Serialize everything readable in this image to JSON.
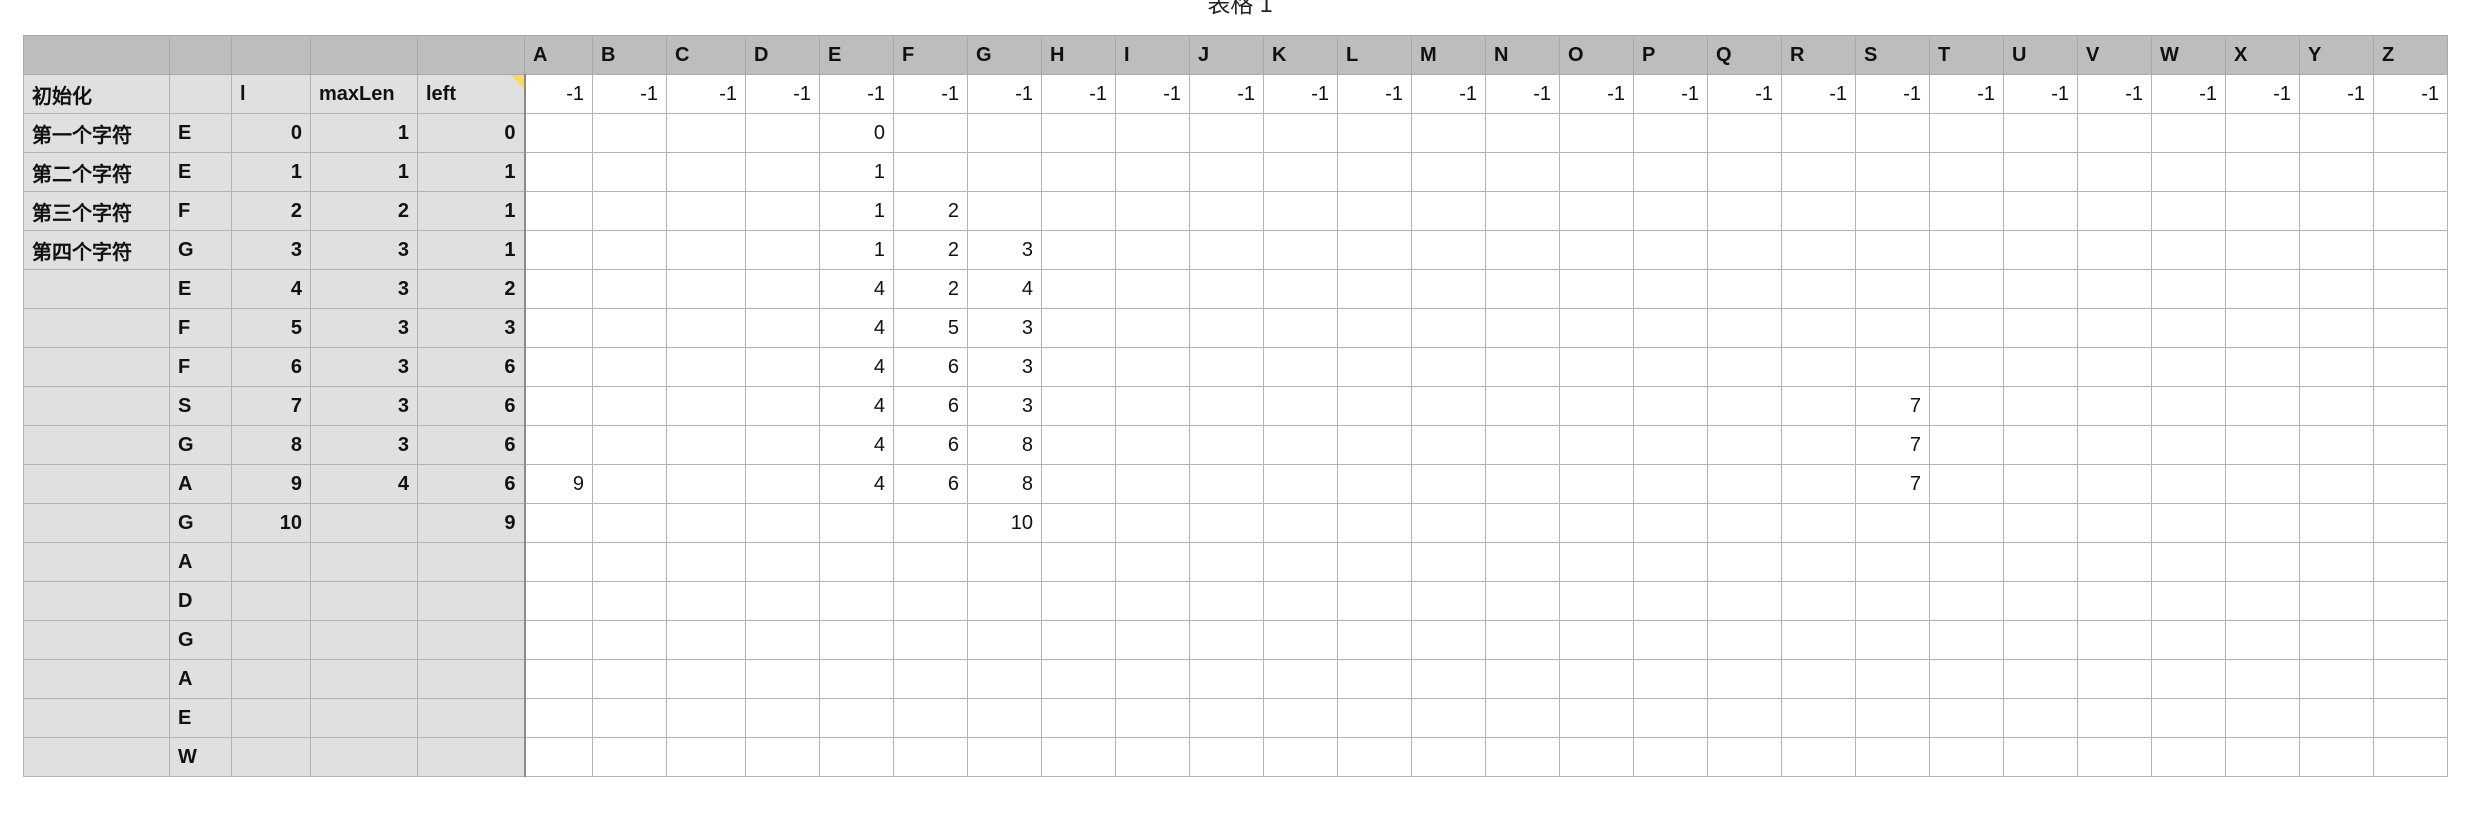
{
  "sheet_title": "表格 1",
  "col_headers": [
    "A",
    "B",
    "C",
    "D",
    "E",
    "F",
    "G",
    "H",
    "I",
    "J",
    "K",
    "L",
    "M",
    "N",
    "O",
    "P",
    "Q",
    "R",
    "S",
    "T",
    "U",
    "V",
    "W",
    "X",
    "Y",
    "Z"
  ],
  "header_row": {
    "label": "初始化",
    "char": "",
    "i": "l",
    "max_len": "maxLen",
    "left": "left"
  },
  "rows": [
    {
      "label": "初始化",
      "char": "",
      "i": "l",
      "max_len": "maxLen",
      "left": "left",
      "is_header": true,
      "values": [
        "-1",
        "-1",
        "-1",
        "-1",
        "-1",
        "-1",
        "-1",
        "-1",
        "-1",
        "-1",
        "-1",
        "-1",
        "-1",
        "-1",
        "-1",
        "-1",
        "-1",
        "-1",
        "-1",
        "-1",
        "-1",
        "-1",
        "-1",
        "-1",
        "-1",
        "-1"
      ]
    },
    {
      "label": "第一个字符",
      "char": "E",
      "i": "0",
      "max_len": "1",
      "left": "0",
      "values": [
        "",
        "",
        "",
        "",
        "0",
        "",
        "",
        "",
        "",
        "",
        "",
        "",
        "",
        "",
        "",
        "",
        "",
        "",
        "",
        "",
        "",
        "",
        "",
        "",
        "",
        ""
      ]
    },
    {
      "label": "第二个字符",
      "char": "E",
      "i": "1",
      "max_len": "1",
      "left": "1",
      "values": [
        "",
        "",
        "",
        "",
        "1",
        "",
        "",
        "",
        "",
        "",
        "",
        "",
        "",
        "",
        "",
        "",
        "",
        "",
        "",
        "",
        "",
        "",
        "",
        "",
        "",
        ""
      ]
    },
    {
      "label": "第三个字符",
      "char": "F",
      "i": "2",
      "max_len": "2",
      "left": "1",
      "values": [
        "",
        "",
        "",
        "",
        "1",
        "2",
        "",
        "",
        "",
        "",
        "",
        "",
        "",
        "",
        "",
        "",
        "",
        "",
        "",
        "",
        "",
        "",
        "",
        "",
        "",
        ""
      ]
    },
    {
      "label": "第四个字符",
      "char": "G",
      "i": "3",
      "max_len": "3",
      "left": "1",
      "values": [
        "",
        "",
        "",
        "",
        "1",
        "2",
        "3",
        "",
        "",
        "",
        "",
        "",
        "",
        "",
        "",
        "",
        "",
        "",
        "",
        "",
        "",
        "",
        "",
        "",
        "",
        ""
      ]
    },
    {
      "label": "",
      "char": "E",
      "i": "4",
      "max_len": "3",
      "left": "2",
      "values": [
        "",
        "",
        "",
        "",
        "4",
        "2",
        "4",
        "",
        "",
        "",
        "",
        "",
        "",
        "",
        "",
        "",
        "",
        "",
        "",
        "",
        "",
        "",
        "",
        "",
        "",
        ""
      ]
    },
    {
      "label": "",
      "char": "F",
      "i": "5",
      "max_len": "3",
      "left": "3",
      "values": [
        "",
        "",
        "",
        "",
        "4",
        "5",
        "3",
        "",
        "",
        "",
        "",
        "",
        "",
        "",
        "",
        "",
        "",
        "",
        "",
        "",
        "",
        "",
        "",
        "",
        "",
        ""
      ]
    },
    {
      "label": "",
      "char": "F",
      "i": "6",
      "max_len": "3",
      "left": "6",
      "values": [
        "",
        "",
        "",
        "",
        "4",
        "6",
        "3",
        "",
        "",
        "",
        "",
        "",
        "",
        "",
        "",
        "",
        "",
        "",
        "",
        "",
        "",
        "",
        "",
        "",
        "",
        ""
      ]
    },
    {
      "label": "",
      "char": "S",
      "i": "7",
      "max_len": "3",
      "left": "6",
      "values": [
        "",
        "",
        "",
        "",
        "4",
        "6",
        "3",
        "",
        "",
        "",
        "",
        "",
        "",
        "",
        "",
        "",
        "",
        "",
        "7",
        "",
        "",
        "",
        "",
        "",
        "",
        ""
      ]
    },
    {
      "label": "",
      "char": "G",
      "i": "8",
      "max_len": "3",
      "left": "6",
      "values": [
        "",
        "",
        "",
        "",
        "4",
        "6",
        "8",
        "",
        "",
        "",
        "",
        "",
        "",
        "",
        "",
        "",
        "",
        "",
        "7",
        "",
        "",
        "",
        "",
        "",
        "",
        ""
      ]
    },
    {
      "label": "",
      "char": "A",
      "i": "9",
      "max_len": "4",
      "left": "6",
      "values": [
        "9",
        "",
        "",
        "",
        "4",
        "6",
        "8",
        "",
        "",
        "",
        "",
        "",
        "",
        "",
        "",
        "",
        "",
        "",
        "7",
        "",
        "",
        "",
        "",
        "",
        "",
        ""
      ]
    },
    {
      "label": "",
      "char": "G",
      "i": "10",
      "max_len": "",
      "left": "9",
      "values": [
        "",
        "",
        "",
        "",
        "",
        "",
        "10",
        "",
        "",
        "",
        "",
        "",
        "",
        "",
        "",
        "",
        "",
        "",
        "",
        "",
        "",
        "",
        "",
        "",
        "",
        ""
      ]
    },
    {
      "label": "",
      "char": "A",
      "i": "",
      "max_len": "",
      "left": "",
      "values": [
        "",
        "",
        "",
        "",
        "",
        "",
        "",
        "",
        "",
        "",
        "",
        "",
        "",
        "",
        "",
        "",
        "",
        "",
        "",
        "",
        "",
        "",
        "",
        "",
        "",
        ""
      ]
    },
    {
      "label": "",
      "char": "D",
      "i": "",
      "max_len": "",
      "left": "",
      "values": [
        "",
        "",
        "",
        "",
        "",
        "",
        "",
        "",
        "",
        "",
        "",
        "",
        "",
        "",
        "",
        "",
        "",
        "",
        "",
        "",
        "",
        "",
        "",
        "",
        "",
        ""
      ]
    },
    {
      "label": "",
      "char": "G",
      "i": "",
      "max_len": "",
      "left": "",
      "values": [
        "",
        "",
        "",
        "",
        "",
        "",
        "",
        "",
        "",
        "",
        "",
        "",
        "",
        "",
        "",
        "",
        "",
        "",
        "",
        "",
        "",
        "",
        "",
        "",
        "",
        ""
      ]
    },
    {
      "label": "",
      "char": "A",
      "i": "",
      "max_len": "",
      "left": "",
      "values": [
        "",
        "",
        "",
        "",
        "",
        "",
        "",
        "",
        "",
        "",
        "",
        "",
        "",
        "",
        "",
        "",
        "",
        "",
        "",
        "",
        "",
        "",
        "",
        "",
        "",
        ""
      ]
    },
    {
      "label": "",
      "char": "E",
      "i": "",
      "max_len": "",
      "left": "",
      "values": [
        "",
        "",
        "",
        "",
        "",
        "",
        "",
        "",
        "",
        "",
        "",
        "",
        "",
        "",
        "",
        "",
        "",
        "",
        "",
        "",
        "",
        "",
        "",
        "",
        "",
        ""
      ]
    },
    {
      "label": "",
      "char": "W",
      "i": "",
      "max_len": "",
      "left": "",
      "values": [
        "",
        "",
        "",
        "",
        "",
        "",
        "",
        "",
        "",
        "",
        "",
        "",
        "",
        "",
        "",
        "",
        "",
        "",
        "",
        "",
        "",
        "",
        "",
        "",
        "",
        ""
      ]
    }
  ]
}
